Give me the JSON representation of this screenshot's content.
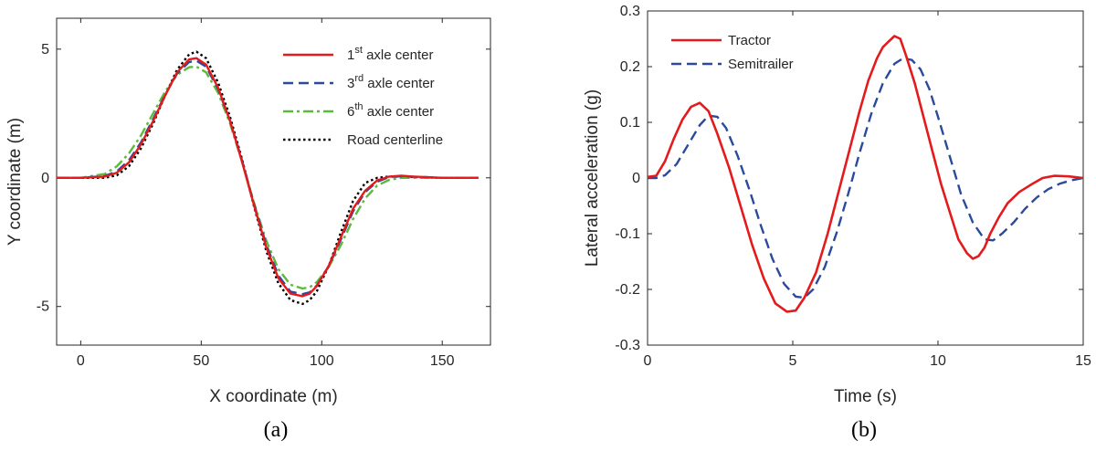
{
  "chart_data": [
    {
      "type": "line",
      "panel_label": "(a)",
      "xlabel": "X coordinate (m)",
      "ylabel": "Y coordinate (m)",
      "xlim": [
        -10,
        170
      ],
      "ylim": [
        -6.5,
        6.2
      ],
      "xticks": [
        0,
        50,
        100,
        150
      ],
      "xtick_labels": [
        "0",
        "50",
        "100",
        "150"
      ],
      "yticks": [
        -5,
        0,
        5
      ],
      "ytick_labels": [
        "-5",
        "0",
        "5"
      ],
      "legend_position": "top-right",
      "series": [
        {
          "name": "1st axle center",
          "label_base": "1",
          "label_sup": "st",
          "label_rest": " axle center",
          "color": "#e41a1c",
          "dash": "solid",
          "x": [
            -10,
            0,
            10,
            15,
            20,
            25,
            30,
            35,
            40,
            45,
            48,
            52,
            57,
            62,
            67,
            72,
            77,
            82,
            87,
            92,
            95,
            98,
            103,
            108,
            113,
            118,
            123,
            128,
            133,
            138,
            145,
            150,
            165
          ],
          "y": [
            0,
            0,
            0.05,
            0.2,
            0.6,
            1.3,
            2.2,
            3.2,
            4.1,
            4.6,
            4.65,
            4.4,
            3.5,
            2.2,
            0.6,
            -1.1,
            -2.7,
            -3.9,
            -4.5,
            -4.6,
            -4.5,
            -4.2,
            -3.4,
            -2.3,
            -1.2,
            -0.5,
            -0.1,
            0.05,
            0.08,
            0.05,
            0.02,
            0.0,
            0.0
          ]
        },
        {
          "name": "3rd axle center",
          "label_base": "3",
          "label_sup": "rd",
          "label_rest": " axle center",
          "color": "#2b4a9b",
          "dash": "dashed",
          "x": [
            -10,
            0,
            10,
            15,
            20,
            25,
            30,
            35,
            40,
            45,
            48,
            52,
            57,
            62,
            67,
            72,
            77,
            82,
            87,
            92,
            95,
            98,
            103,
            108,
            113,
            118,
            123,
            128,
            133,
            138,
            145,
            150,
            165
          ],
          "y": [
            0,
            0,
            0.07,
            0.25,
            0.68,
            1.38,
            2.28,
            3.22,
            4.05,
            4.5,
            4.55,
            4.32,
            3.45,
            2.2,
            0.65,
            -1.05,
            -2.6,
            -3.8,
            -4.42,
            -4.52,
            -4.45,
            -4.18,
            -3.42,
            -2.38,
            -1.3,
            -0.55,
            -0.15,
            0.03,
            0.06,
            0.04,
            0.02,
            0.0,
            0.0
          ]
        },
        {
          "name": "6th axle center",
          "label_base": "6",
          "label_sup": "th",
          "label_rest": " axle center",
          "color": "#5aba3c",
          "dash": "dashdot",
          "x": [
            -10,
            0,
            10,
            15,
            20,
            25,
            30,
            35,
            40,
            45,
            48,
            52,
            57,
            62,
            67,
            72,
            77,
            82,
            87,
            92,
            95,
            98,
            103,
            108,
            113,
            118,
            123,
            128,
            133,
            138,
            145,
            150,
            165
          ],
          "y": [
            0,
            0,
            0.15,
            0.45,
            0.95,
            1.65,
            2.5,
            3.35,
            4.0,
            4.3,
            4.32,
            4.1,
            3.3,
            2.1,
            0.6,
            -1.0,
            -2.45,
            -3.55,
            -4.15,
            -4.3,
            -4.25,
            -4.05,
            -3.45,
            -2.6,
            -1.6,
            -0.8,
            -0.3,
            -0.08,
            0.0,
            0.0,
            0.0,
            0.0,
            0.0
          ]
        },
        {
          "name": "Road centerline",
          "label_base": "Road centerline",
          "label_sup": "",
          "label_rest": "",
          "color": "#000000",
          "dash": "dotted",
          "x": [
            -10,
            0,
            10,
            15,
            20,
            25,
            30,
            35,
            40,
            45,
            48,
            52,
            57,
            62,
            67,
            72,
            77,
            82,
            87,
            92,
            95,
            98,
            103,
            108,
            113,
            118,
            123,
            128,
            133,
            138,
            145,
            150,
            165
          ],
          "y": [
            0,
            0,
            0.0,
            0.1,
            0.45,
            1.15,
            2.1,
            3.2,
            4.2,
            4.8,
            4.9,
            4.65,
            3.7,
            2.35,
            0.7,
            -1.15,
            -2.85,
            -4.1,
            -4.75,
            -4.9,
            -4.75,
            -4.4,
            -3.4,
            -2.1,
            -0.9,
            -0.2,
            0.0,
            0.05,
            0.05,
            0.03,
            0.01,
            0.0,
            0.0
          ]
        }
      ]
    },
    {
      "type": "line",
      "panel_label": "(b)",
      "xlabel": "Time (s)",
      "ylabel": "Lateral acceleration (g)",
      "xlim": [
        0,
        15
      ],
      "ylim": [
        -0.3,
        0.3
      ],
      "xticks": [
        0,
        5,
        10,
        15
      ],
      "xtick_labels": [
        "0",
        "5",
        "10",
        "15"
      ],
      "yticks": [
        -0.3,
        -0.2,
        -0.1,
        0,
        0.1,
        0.2,
        0.3
      ],
      "ytick_labels": [
        "-0.3",
        "-0.2",
        "-0.1",
        "0",
        "0.1",
        "0.2",
        "0.3"
      ],
      "legend_position": "top-left",
      "series": [
        {
          "name": "Tractor",
          "color": "#e41a1c",
          "dash": "solid",
          "x": [
            0,
            0.3,
            0.6,
            0.9,
            1.2,
            1.5,
            1.8,
            2.1,
            2.4,
            2.8,
            3.2,
            3.6,
            4.0,
            4.4,
            4.8,
            5.1,
            5.4,
            5.8,
            6.2,
            6.6,
            7.0,
            7.3,
            7.6,
            7.9,
            8.1,
            8.3,
            8.5,
            8.7,
            8.9,
            9.2,
            9.5,
            9.8,
            10.1,
            10.4,
            10.7,
            11.0,
            11.2,
            11.4,
            11.6,
            11.8,
            12.1,
            12.4,
            12.8,
            13.2,
            13.6,
            14.0,
            14.5,
            15.0
          ],
          "y": [
            0.002,
            0.004,
            0.03,
            0.07,
            0.105,
            0.128,
            0.135,
            0.12,
            0.08,
            0.02,
            -0.05,
            -0.12,
            -0.18,
            -0.225,
            -0.24,
            -0.238,
            -0.215,
            -0.17,
            -0.1,
            -0.02,
            0.06,
            0.12,
            0.175,
            0.215,
            0.235,
            0.245,
            0.255,
            0.25,
            0.22,
            0.17,
            0.11,
            0.05,
            -0.01,
            -0.06,
            -0.11,
            -0.135,
            -0.145,
            -0.14,
            -0.125,
            -0.1,
            -0.07,
            -0.045,
            -0.025,
            -0.012,
            0.0,
            0.004,
            0.003,
            0.0
          ]
        },
        {
          "name": "Semitrailer",
          "color": "#2b4a9b",
          "dash": "dashed",
          "x": [
            0,
            0.3,
            0.6,
            1.0,
            1.4,
            1.8,
            2.1,
            2.4,
            2.7,
            3.1,
            3.5,
            3.9,
            4.3,
            4.7,
            5.1,
            5.4,
            5.7,
            6.1,
            6.5,
            6.9,
            7.3,
            7.7,
            8.1,
            8.5,
            8.8,
            9.1,
            9.4,
            9.7,
            10.0,
            10.4,
            10.8,
            11.2,
            11.6,
            11.9,
            12.2,
            12.6,
            13.0,
            13.4,
            13.8,
            14.2,
            14.6,
            15.0
          ],
          "y": [
            0.0,
            0.0,
            0.005,
            0.025,
            0.06,
            0.095,
            0.112,
            0.11,
            0.09,
            0.04,
            -0.02,
            -0.085,
            -0.145,
            -0.19,
            -0.213,
            -0.215,
            -0.2,
            -0.16,
            -0.1,
            -0.03,
            0.045,
            0.115,
            0.17,
            0.205,
            0.215,
            0.212,
            0.195,
            0.16,
            0.11,
            0.04,
            -0.03,
            -0.08,
            -0.11,
            -0.112,
            -0.1,
            -0.08,
            -0.055,
            -0.035,
            -0.02,
            -0.01,
            -0.004,
            0.0
          ]
        }
      ]
    }
  ]
}
